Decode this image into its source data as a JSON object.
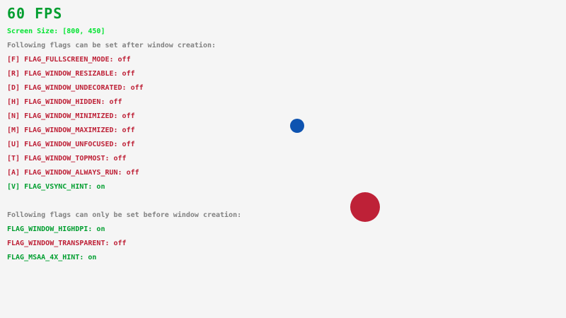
{
  "window": {
    "background_color": "#f5f5f5"
  },
  "hud": {
    "fps_text": "60 FPS",
    "screen_size_text": "Screen Size: [800, 450]"
  },
  "colors": {
    "fps": "#009e2f",
    "screen_size": "#00e430",
    "header_gray": "#828282",
    "flag_on": "#009e2f",
    "flag_off": "#be2137",
    "ball_blue": "#0e53b0",
    "ball_red": "#be2137"
  },
  "after_creation": {
    "header": "Following flags can be set after window creation:",
    "flags": [
      {
        "label": "[F] FLAG_FULLSCREEN_MODE",
        "state": "off"
      },
      {
        "label": "[R] FLAG_WINDOW_RESIZABLE",
        "state": "off"
      },
      {
        "label": "[D] FLAG_WINDOW_UNDECORATED",
        "state": "off"
      },
      {
        "label": "[H] FLAG_WINDOW_HIDDEN",
        "state": "off"
      },
      {
        "label": "[N] FLAG_WINDOW_MINIMIZED",
        "state": "off"
      },
      {
        "label": "[M] FLAG_WINDOW_MAXIMIZED",
        "state": "off"
      },
      {
        "label": "[U] FLAG_WINDOW_UNFOCUSED",
        "state": "off"
      },
      {
        "label": "[T] FLAG_WINDOW_TOPMOST",
        "state": "off"
      },
      {
        "label": "[A] FLAG_WINDOW_ALWAYS_RUN",
        "state": "off"
      },
      {
        "label": "[V] FLAG_VSYNC_HINT",
        "state": "on"
      }
    ]
  },
  "before_creation": {
    "header": "Following flags can only be set before window creation:",
    "flags": [
      {
        "label": "FLAG_WINDOW_HIGHDPI",
        "state": "on"
      },
      {
        "label": "FLAG_WINDOW_TRANSPARENT",
        "state": "off"
      },
      {
        "label": "FLAG_MSAA_4X_HINT",
        "state": "on"
      }
    ]
  },
  "balls": [
    {
      "name": "blue-ball",
      "color_key": "ball_blue"
    },
    {
      "name": "red-ball",
      "color_key": "ball_red"
    }
  ]
}
